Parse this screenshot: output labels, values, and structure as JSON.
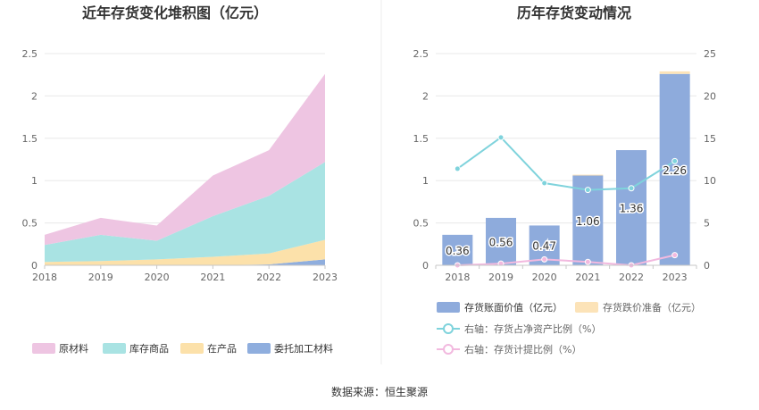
{
  "source": "数据来源：恒生聚源",
  "colors": {
    "raw_material": "#eec5e2",
    "finished_goods": "#a9e3e3",
    "wip": "#fce1aa",
    "outsourced": "#8faede",
    "bar": "#8eabdc",
    "bar_reserve": "#fce3b8",
    "line_ratio": "#7fd3dc",
    "line_provision": "#f2b9df",
    "grid": "#e8e8e8",
    "axis": "#c7c7c7"
  },
  "chart_data": [
    {
      "type": "area",
      "stacked": true,
      "title": "近年存货变化堆积图（亿元）",
      "categories": [
        "2018",
        "2019",
        "2020",
        "2021",
        "2022",
        "2023"
      ],
      "ylim": [
        0,
        2.5
      ],
      "yticks": [
        "0",
        "0.5",
        "1",
        "1.5",
        "2",
        "2.5"
      ],
      "legend_position": "bottom",
      "series": [
        {
          "name": "委托加工材料",
          "color_key": "outsourced",
          "values": [
            0.0,
            0.0,
            0.0,
            0.0,
            0.01,
            0.07
          ]
        },
        {
          "name": "在产品",
          "color_key": "wip",
          "values": [
            0.04,
            0.05,
            0.07,
            0.1,
            0.13,
            0.23
          ]
        },
        {
          "name": "库存商品",
          "color_key": "finished_goods",
          "values": [
            0.2,
            0.31,
            0.22,
            0.48,
            0.68,
            0.92
          ]
        },
        {
          "name": "原材料",
          "color_key": "raw_material",
          "values": [
            0.12,
            0.2,
            0.18,
            0.48,
            0.54,
            1.04
          ]
        }
      ],
      "legend_order": [
        "原材料",
        "库存商品",
        "在产品",
        "委托加工材料"
      ]
    },
    {
      "type": "bar",
      "title": "历年存货变动情况",
      "categories": [
        "2018",
        "2019",
        "2020",
        "2021",
        "2022",
        "2023"
      ],
      "ylim": [
        0,
        2.5
      ],
      "yticks": [
        "0",
        "0.5",
        "1",
        "1.5",
        "2",
        "2.5"
      ],
      "y2lim": [
        0,
        25
      ],
      "y2ticks": [
        "0",
        "5",
        "10",
        "15",
        "20",
        "25"
      ],
      "legend_position": "bottom",
      "series": [
        {
          "name": "存货账面价值（亿元）",
          "kind": "bar",
          "axis": "left",
          "color_key": "bar",
          "values": [
            0.36,
            0.56,
            0.47,
            1.06,
            1.36,
            2.26
          ],
          "labels": [
            "0.36",
            "0.56",
            "0.47",
            "1.06",
            "1.36",
            "2.26"
          ]
        },
        {
          "name": "存货跌价准备（亿元）",
          "kind": "bar-stack",
          "axis": "left",
          "color_key": "bar_reserve",
          "values": [
            0.0,
            0.0,
            0.0,
            0.01,
            0.0,
            0.03
          ]
        },
        {
          "name": "右轴：存货占净资产比例（%）",
          "kind": "line",
          "axis": "right",
          "color_key": "line_ratio",
          "values": [
            11.4,
            15.1,
            9.7,
            8.9,
            9.1,
            12.3
          ]
        },
        {
          "name": "右轴：存货计提比例（%）",
          "kind": "line",
          "axis": "right",
          "color_key": "line_provision",
          "values": [
            0.0,
            0.2,
            0.7,
            0.4,
            0.0,
            1.2
          ]
        }
      ]
    }
  ]
}
